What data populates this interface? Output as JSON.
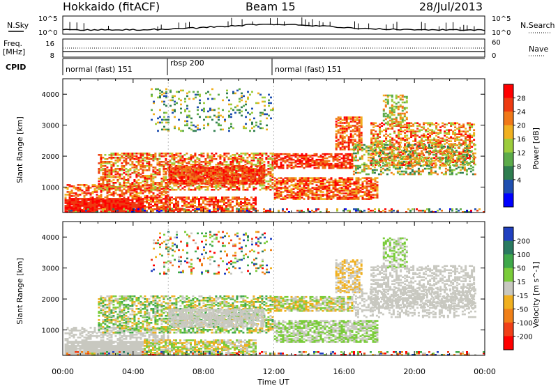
{
  "header": {
    "station": "Hokkaido (fitACF)",
    "beam": "Beam 15",
    "date": "28/Jul/2013"
  },
  "top_panels": {
    "nsky_label": "N.Sky",
    "nsky_ticks": [
      "10^5",
      "10^0"
    ],
    "nsearch_ticks": [
      "10^5",
      "10^0"
    ],
    "nsearch_label": "N.Search",
    "freq_label_1": "Freq.",
    "freq_label_2": "[MHz]",
    "freq_ticks": [
      "16",
      "8"
    ],
    "nave_ticks": [
      "60",
      "0"
    ],
    "nave_label": "Nave",
    "cpid_label": "CPID",
    "cpid_segments": [
      "normal (fast) 151",
      "rbsp 200",
      "normal (fast) 151"
    ]
  },
  "chart_data": [
    {
      "type": "heatmap",
      "title": "",
      "ylabel": "Slant Range [km]",
      "xlabel": "",
      "x_ticks": [
        "00:00",
        "04:00",
        "08:00",
        "12:00",
        "16:00",
        "20:00",
        "00:00"
      ],
      "y_ticks": [
        "1000",
        "2000",
        "3000",
        "4000"
      ],
      "ylim": [
        180,
        4500
      ],
      "xlim_hours": [
        0,
        24
      ],
      "colorbar": {
        "label": "Power [dB]",
        "ticks": [
          "4",
          "8",
          "12",
          "16",
          "20",
          "24",
          "28"
        ],
        "range": [
          0,
          30
        ],
        "colors": [
          "#0000ff",
          "#1f4fb0",
          "#2e7d4f",
          "#5cab4a",
          "#9ccc3c",
          "#f0b020",
          "#f07818",
          "#ee3a10",
          "#ff0000"
        ]
      }
    },
    {
      "type": "heatmap",
      "title": "",
      "ylabel": "Slant Range [km]",
      "xlabel": "Time UT",
      "x_ticks": [
        "00:00",
        "04:00",
        "08:00",
        "12:00",
        "16:00",
        "20:00",
        "00:00"
      ],
      "y_ticks": [
        "1000",
        "2000",
        "3000",
        "4000"
      ],
      "ylim": [
        180,
        4500
      ],
      "xlim_hours": [
        0,
        24
      ],
      "colorbar": {
        "label": "Velocity [m s^-1]",
        "ticks": [
          "200",
          "100",
          "50",
          "15",
          "-15",
          "-50",
          "-100",
          "-200"
        ],
        "range": [
          -250,
          250
        ],
        "colors": [
          "#2040c0",
          "#2a7a60",
          "#3fa84a",
          "#7acc3a",
          "#c8c8c0",
          "#f0b020",
          "#f08018",
          "#f04018",
          "#ff0000"
        ]
      }
    }
  ]
}
